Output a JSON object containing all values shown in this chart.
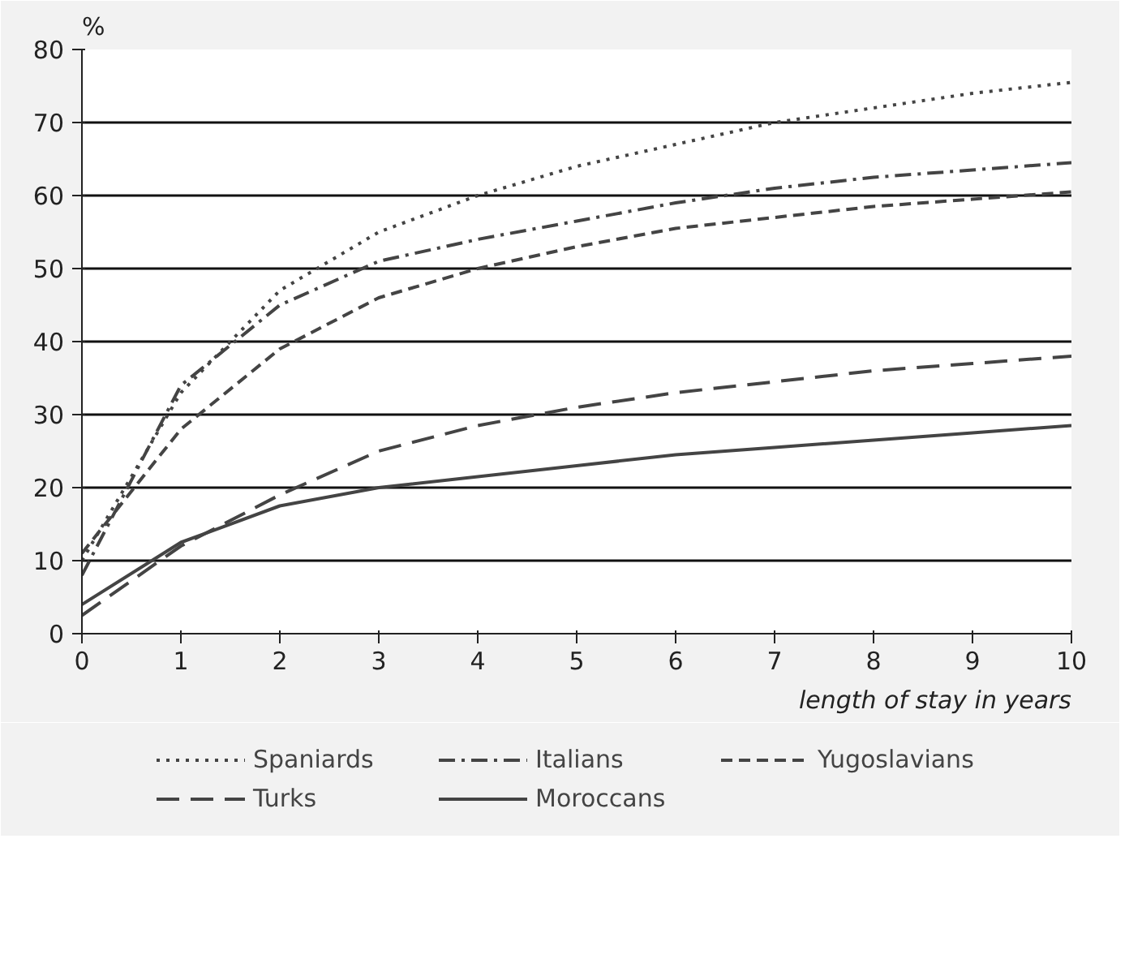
{
  "chart_data": {
    "type": "line",
    "xlabel": "length of stay in years",
    "ylabel": "%",
    "x": [
      0,
      1,
      2,
      3,
      4,
      5,
      6,
      7,
      8,
      9,
      10
    ],
    "xlim": [
      0,
      10
    ],
    "xticks": [
      0,
      1,
      2,
      3,
      4,
      5,
      6,
      7,
      8,
      9,
      10
    ],
    "ylim": [
      0,
      80
    ],
    "yticks": [
      0,
      10,
      20,
      30,
      40,
      50,
      60,
      70,
      80
    ],
    "grid": "y",
    "legend": "bottom",
    "series": [
      {
        "name": "Spaniards",
        "color": "#444444",
        "line_style": "dotted",
        "values": [
          10,
          33,
          47,
          55,
          60,
          64,
          67,
          70,
          72,
          74,
          75.5
        ]
      },
      {
        "name": "Italians",
        "color": "#444444",
        "line_style": "dashdot",
        "values": [
          8,
          34,
          45,
          51,
          54,
          56.5,
          59,
          61,
          62.5,
          63.5,
          64.5
        ]
      },
      {
        "name": "Yugoslavians",
        "color": "#444444",
        "line_style": "dashed",
        "values": [
          11,
          28,
          39,
          46,
          50,
          53,
          55.5,
          57,
          58.5,
          59.5,
          60.5
        ]
      },
      {
        "name": "Turks",
        "color": "#444444",
        "line_style": "longdash",
        "values": [
          2.5,
          12,
          19,
          25,
          28.5,
          31,
          33,
          34.5,
          36,
          37,
          38
        ]
      },
      {
        "name": "Moroccans",
        "color": "#444444",
        "line_style": "solid",
        "values": [
          4,
          12.5,
          17.5,
          20,
          21.5,
          23,
          24.5,
          25.5,
          26.5,
          27.5,
          28.5
        ]
      }
    ]
  }
}
